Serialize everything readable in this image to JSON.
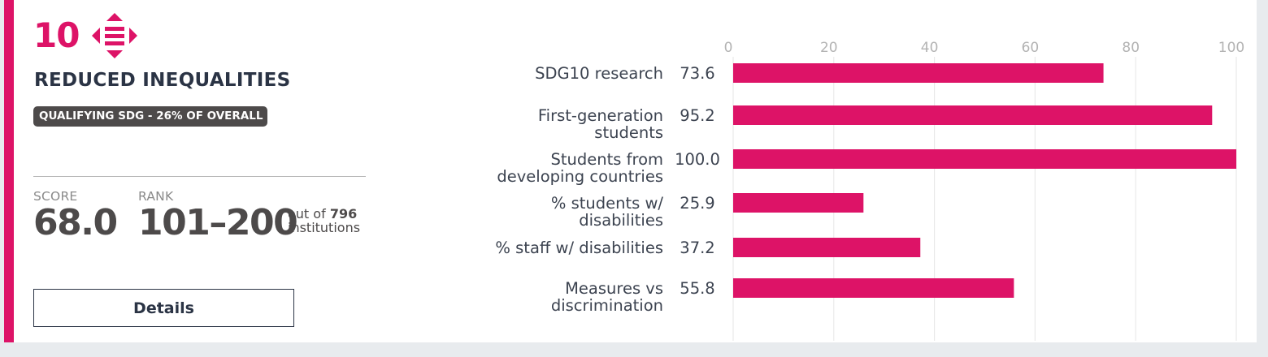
{
  "sdg": {
    "number": "10",
    "icon": "reduced-inequalities-icon",
    "title": "REDUCED INEQUALITIES",
    "badge": "QUALIFYING SDG - 26% OF OVERALL",
    "accent_color": "#dd1367"
  },
  "stats": {
    "score_label": "SCORE",
    "score_value": "68.0",
    "rank_label": "RANK",
    "rank_value": "101–200",
    "rank_out_of_prefix": "out of",
    "rank_total": "796",
    "rank_suffix": "institutions"
  },
  "details_button": "Details",
  "chart_data": {
    "type": "bar",
    "orientation": "horizontal",
    "categories": [
      [
        "SDG10 research"
      ],
      [
        "First-generation",
        "students"
      ],
      [
        "Students from",
        "developing countries"
      ],
      [
        "% students w/",
        "disabilities"
      ],
      [
        "% staff w/ disabilities"
      ],
      [
        "Measures vs",
        "discrimination"
      ]
    ],
    "values": [
      73.6,
      95.2,
      100.0,
      25.9,
      37.2,
      55.8
    ],
    "value_labels": [
      "73.6",
      "95.2",
      "100.0",
      "25.9",
      "37.2",
      "55.8"
    ],
    "xlim": [
      0,
      100
    ],
    "xticks": [
      0,
      20,
      40,
      60,
      80,
      100
    ],
    "axis_position": "top",
    "grid": true,
    "title": "",
    "xlabel": "",
    "ylabel": "",
    "bar_color": "#dd1367",
    "grid_color": "#e6e6e6"
  }
}
